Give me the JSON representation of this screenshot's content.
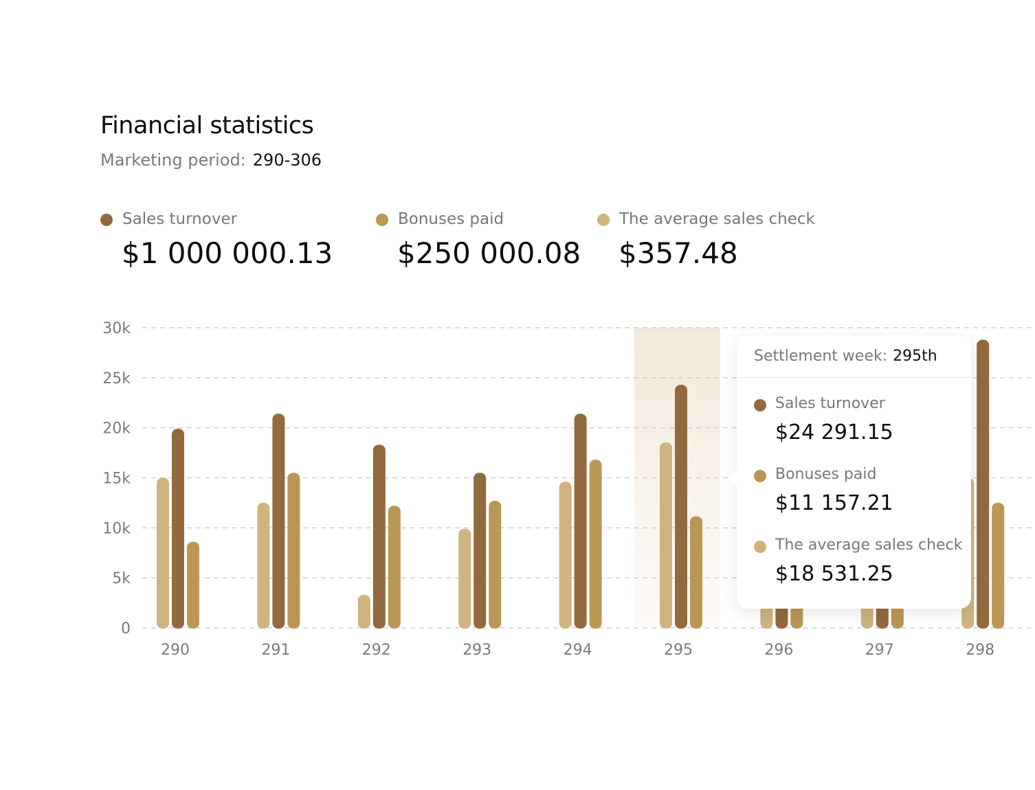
{
  "header": {
    "title": "Financial statistics",
    "period_label": "Marketing period:",
    "period_value": "290-306"
  },
  "metrics": [
    {
      "label": "Sales turnover",
      "value": "$1 000 000.13",
      "color": "#926a3d"
    },
    {
      "label": "Bonuses paid",
      "value": "$250 000.08",
      "color": "#bb9755"
    },
    {
      "label": "The average sales check",
      "value": "$357.48",
      "color": "#cfb47f"
    }
  ],
  "tooltip": {
    "week_label": "Settlement week:",
    "week_value": "295th",
    "items": [
      {
        "label": "Sales turnover",
        "value": "$24 291.15",
        "color": "#926a3d"
      },
      {
        "label": "Bonuses paid",
        "value": "$11 157.21",
        "color": "#bb9755"
      },
      {
        "label": "The average sales check",
        "value": "$18 531.25",
        "color": "#cfb47f"
      }
    ]
  },
  "chart_data": {
    "type": "bar",
    "categories": [
      "290",
      "291",
      "292",
      "293",
      "294",
      "295",
      "296",
      "297",
      "298"
    ],
    "highlighted_category": "295",
    "series": [
      {
        "name": "The average sales check",
        "color": "#cfb47f",
        "values": [
          15000,
          12500,
          3300,
          9900,
          14600,
          18531.25,
          8500,
          7000,
          15000
        ]
      },
      {
        "name": "Sales turnover",
        "color": "#926a3d",
        "values": [
          19900,
          21400,
          18300,
          15500,
          21400,
          24291.15,
          9000,
          8000,
          28800
        ]
      },
      {
        "name": "Bonuses paid",
        "color": "#bb9755",
        "values": [
          8600,
          15500,
          12200,
          12700,
          16800,
          11157.21,
          7500,
          6500,
          12500
        ]
      }
    ],
    "y_ticks": [
      "0",
      "5k",
      "10k",
      "15k",
      "20k",
      "25k",
      "30k"
    ],
    "ylim": [
      0,
      30000
    ],
    "grid": true,
    "xlabel": "",
    "ylabel": ""
  }
}
